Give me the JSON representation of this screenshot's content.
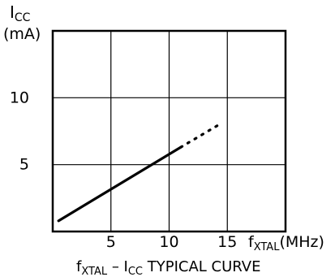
{
  "chart_data": {
    "type": "line",
    "title": "fXTAL – ICC TYPICAL CURVE",
    "caption": {
      "f": "f",
      "xtal_sub": "XTAL",
      "dash": " – ",
      "i": "I",
      "cc_sub": "CC",
      "rest": " TYPICAL CURVE"
    },
    "xlabel": "fXTAL(MHz)",
    "xlabel_parts": {
      "f": "f",
      "sub": "XTAL",
      "unit": "(MHz)"
    },
    "ylabel": "ICC (mA)",
    "ylabel_parts": {
      "i": "I",
      "sub": "CC",
      "unit": "(mA)"
    },
    "xlim": [
      0,
      20
    ],
    "ylim": [
      0,
      15
    ],
    "x_ticks": [
      5,
      10,
      15
    ],
    "y_ticks": [
      5,
      10
    ],
    "grid": true,
    "series": [
      {
        "style": "solid",
        "color": "#000000",
        "x": [
          0.5,
          11.0
        ],
        "y": [
          0.8,
          6.3
        ]
      },
      {
        "style": "dotted",
        "color": "#000000",
        "x": [
          11.0,
          14.5
        ],
        "y": [
          6.3,
          8.1
        ]
      }
    ]
  }
}
